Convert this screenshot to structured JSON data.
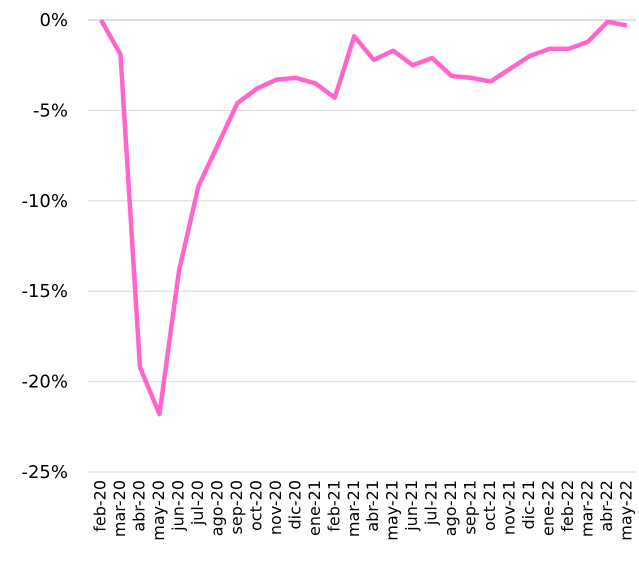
{
  "chart_data": {
    "type": "line",
    "categories": [
      "feb-20",
      "mar-20",
      "abr-20",
      "may-20",
      "jun-20",
      "jul-20",
      "ago-20",
      "sep-20",
      "oct-20",
      "nov-20",
      "dic-20",
      "ene-21",
      "feb-21",
      "mar-21",
      "abr-21",
      "may-21",
      "jun-21",
      "jul-21",
      "ago-21",
      "sep-21",
      "oct-21",
      "nov-21",
      "dic-21",
      "ene-22",
      "feb-22",
      "mar-22",
      "abr-22",
      "may-22"
    ],
    "values": [
      0,
      -1.9,
      -19.2,
      -21.8,
      -13.9,
      -9.2,
      -6.9,
      -4.6,
      -3.8,
      -3.3,
      -3.2,
      -3.5,
      -4.3,
      -0.9,
      -2.2,
      -1.7,
      -2.5,
      -2.1,
      -3.1,
      -3.2,
      -3.4,
      -2.7,
      -2.0,
      -1.6,
      -1.6,
      -1.2,
      -0.1,
      -0.3
    ],
    "color": "#ff66cc",
    "ylim": [
      -25,
      0
    ],
    "yticks": [
      {
        "value": 0,
        "label": "0%"
      },
      {
        "value": -5,
        "label": "-5%"
      },
      {
        "value": -10,
        "label": "-10%"
      },
      {
        "value": -15,
        "label": "-15%"
      },
      {
        "value": -20,
        "label": "-20%"
      },
      {
        "value": -25,
        "label": "-25%"
      }
    ],
    "grid": true
  }
}
